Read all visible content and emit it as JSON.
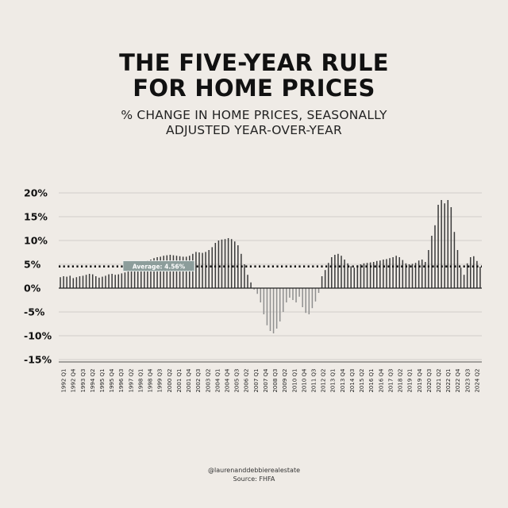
{
  "header": {
    "title_line1": "THE FIVE-YEAR RULE",
    "title_line2": "FOR HOME PRICES",
    "subtitle_line1": "% CHANGE IN HOME PRICES, SEASONALLY",
    "subtitle_line2": "ADJUSTED YEAR-OVER-YEAR"
  },
  "footer": {
    "handle": "@laurenanddebbierealestate",
    "source": "Source: FHFA"
  },
  "chart_data": {
    "type": "bar",
    "title": "",
    "xlabel": "",
    "ylabel": "",
    "ylim": [
      -15,
      20
    ],
    "yticks": [
      20,
      15,
      10,
      5,
      0,
      -5,
      -10,
      -15
    ],
    "ytick_labels": [
      "20%",
      "15%",
      "10%",
      "5%",
      "0%",
      "-5%",
      "-10%",
      "-15%"
    ],
    "grid": true,
    "average": {
      "value": 4.56,
      "label": "Average: 4.56%"
    },
    "categories": [
      "1992 Q1",
      "1992 Q2",
      "1992 Q3",
      "1992 Q4",
      "1993 Q1",
      "1993 Q2",
      "1993 Q3",
      "1993 Q4",
      "1994 Q1",
      "1994 Q2",
      "1994 Q3",
      "1994 Q4",
      "1995 Q1",
      "1995 Q2",
      "1995 Q3",
      "1995 Q4",
      "1996 Q1",
      "1996 Q2",
      "1996 Q3",
      "1996 Q4",
      "1997 Q1",
      "1997 Q2",
      "1997 Q3",
      "1997 Q4",
      "1998 Q1",
      "1998 Q2",
      "1998 Q3",
      "1998 Q4",
      "1999 Q1",
      "1999 Q2",
      "1999 Q3",
      "1999 Q4",
      "2000 Q1",
      "2000 Q2",
      "2000 Q3",
      "2000 Q4",
      "2001 Q1",
      "2001 Q2",
      "2001 Q3",
      "2001 Q4",
      "2002 Q1",
      "2002 Q2",
      "2002 Q3",
      "2002 Q4",
      "2003 Q1",
      "2003 Q2",
      "2003 Q3",
      "2003 Q4",
      "2004 Q1",
      "2004 Q2",
      "2004 Q3",
      "2004 Q4",
      "2005 Q1",
      "2005 Q2",
      "2005 Q3",
      "2005 Q4",
      "2006 Q1",
      "2006 Q2",
      "2006 Q3",
      "2006 Q4",
      "2007 Q1",
      "2007 Q2",
      "2007 Q3",
      "2007 Q4",
      "2008 Q1",
      "2008 Q2",
      "2008 Q3",
      "2008 Q4",
      "2009 Q1",
      "2009 Q2",
      "2009 Q3",
      "2009 Q4",
      "2010 Q1",
      "2010 Q2",
      "2010 Q3",
      "2010 Q4",
      "2011 Q1",
      "2011 Q2",
      "2011 Q3",
      "2011 Q4",
      "2012 Q1",
      "2012 Q2",
      "2012 Q3",
      "2012 Q4",
      "2013 Q1",
      "2013 Q2",
      "2013 Q3",
      "2013 Q4",
      "2014 Q1",
      "2014 Q2",
      "2014 Q3",
      "2014 Q4",
      "2015 Q1",
      "2015 Q2",
      "2015 Q3",
      "2015 Q4",
      "2016 Q1",
      "2016 Q2",
      "2016 Q3",
      "2016 Q4",
      "2017 Q1",
      "2017 Q2",
      "2017 Q3",
      "2017 Q4",
      "2018 Q1",
      "2018 Q2",
      "2018 Q3",
      "2018 Q4",
      "2019 Q1",
      "2019 Q2",
      "2019 Q3",
      "2019 Q4",
      "2020 Q1",
      "2020 Q2",
      "2020 Q3",
      "2020 Q4",
      "2021 Q1",
      "2021 Q2",
      "2021 Q3",
      "2021 Q4",
      "2022 Q1",
      "2022 Q2",
      "2022 Q3",
      "2022 Q4",
      "2023 Q1",
      "2023 Q2",
      "2023 Q3",
      "2023 Q4",
      "2024 Q1",
      "2024 Q2",
      "2024 Q3"
    ],
    "tick_labels": [
      "1992 Q1",
      "1992 Q4",
      "1993 Q3",
      "1994 Q2",
      "1995 Q1",
      "1995 Q4",
      "1996 Q3",
      "1997 Q2",
      "1998 Q1",
      "1998 Q4",
      "1999 Q3",
      "2000 Q2",
      "2001 Q1",
      "2001 Q4",
      "2002 Q3",
      "2003 Q2",
      "2004 Q1",
      "2004 Q4",
      "2005 Q3",
      "2006 Q2",
      "2007 Q1",
      "2007 Q4",
      "2008 Q3",
      "2009 Q2",
      "2010 Q1",
      "2010 Q4",
      "2011 Q3",
      "2012 Q2",
      "2013 Q1",
      "2013 Q4",
      "2014 Q3",
      "2015 Q2",
      "2016 Q1",
      "2016 Q4",
      "2017 Q3",
      "2018 Q2",
      "2019 Q1",
      "2019 Q4",
      "2020 Q3",
      "2021 Q2",
      "2022 Q1",
      "2022 Q4",
      "2023 Q3",
      "2024 Q2"
    ],
    "values": [
      2.3,
      2.5,
      2.4,
      2.6,
      2.1,
      2.3,
      2.5,
      2.6,
      2.8,
      3.0,
      2.9,
      2.5,
      2.2,
      2.4,
      2.6,
      2.9,
      3.0,
      2.8,
      2.9,
      3.1,
      3.3,
      3.6,
      4.0,
      4.4,
      5.0,
      5.4,
      5.6,
      5.8,
      6.0,
      6.3,
      6.5,
      6.6,
      6.8,
      6.9,
      7.0,
      6.9,
      6.8,
      6.7,
      6.6,
      6.6,
      6.8,
      7.2,
      7.6,
      7.5,
      7.4,
      7.6,
      8.0,
      8.6,
      9.5,
      10.0,
      10.2,
      10.3,
      10.5,
      10.3,
      9.8,
      9.0,
      7.2,
      5.0,
      2.8,
      1.2,
      -0.3,
      -1.2,
      -3.0,
      -5.5,
      -7.8,
      -9.0,
      -9.5,
      -8.5,
      -7.0,
      -5.0,
      -3.0,
      -2.0,
      -2.5,
      -3.0,
      -1.8,
      -4.0,
      -5.2,
      -5.5,
      -4.2,
      -2.8,
      -1.0,
      2.5,
      3.8,
      5.3,
      6.5,
      7.0,
      7.2,
      6.8,
      6.0,
      5.2,
      4.6,
      4.3,
      4.8,
      5.0,
      5.2,
      5.3,
      5.4,
      5.5,
      5.7,
      5.8,
      6.0,
      6.1,
      6.3,
      6.5,
      6.8,
      6.5,
      5.9,
      5.2,
      5.0,
      5.1,
      5.3,
      5.8,
      6.0,
      5.5,
      8.0,
      11.0,
      13.2,
      17.5,
      18.5,
      17.8,
      18.5,
      17.0,
      11.8,
      8.0,
      4.3,
      2.8,
      5.2,
      6.5,
      6.7,
      5.7,
      4.5
    ]
  }
}
